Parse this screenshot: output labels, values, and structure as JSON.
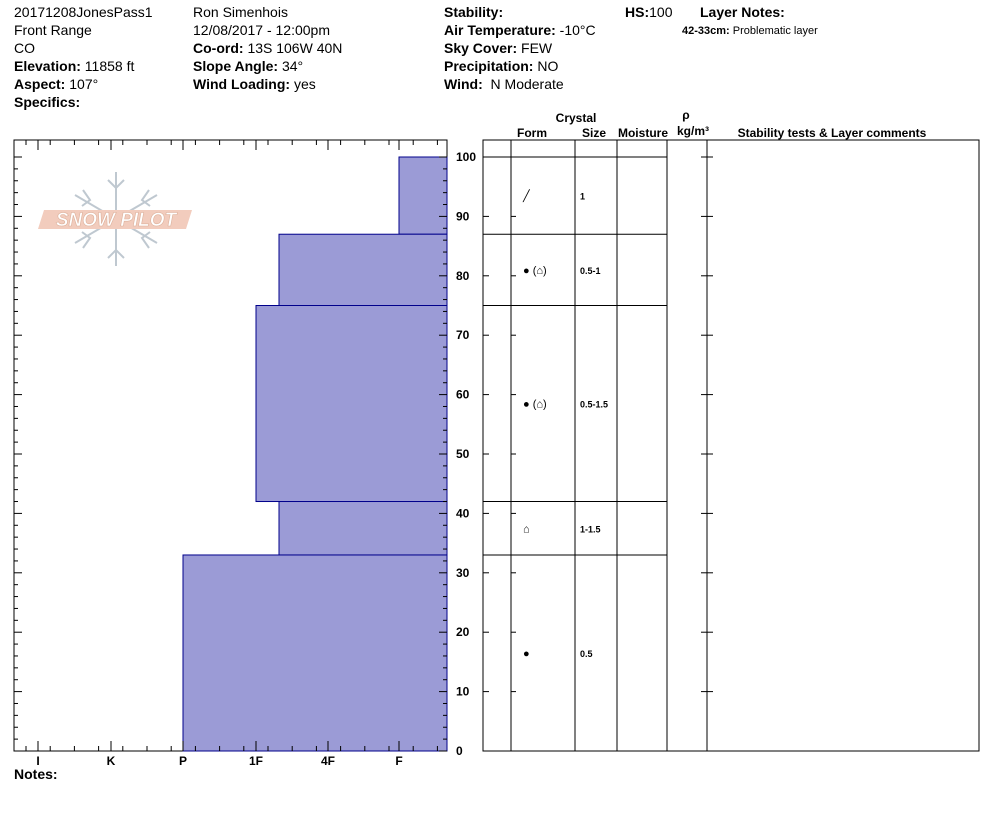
{
  "header": {
    "col1": {
      "pit_name": "20171208JonesPass1",
      "range": "Front Range",
      "state": "CO",
      "elevation_label": "Elevation:",
      "elevation_value": "11858 ft",
      "aspect_label": "Aspect:",
      "aspect_value": "107°",
      "specifics_label": "Specifics:"
    },
    "col2": {
      "observer": "Ron Simenhois",
      "datetime": "12/08/2017 - 12:00pm",
      "coord_label": "Co-ord:",
      "coord_value": "13S 106W 40N",
      "slope_label": "Slope Angle:",
      "slope_value": "34°",
      "wind_loading_label": "Wind Loading:",
      "wind_loading_value": "yes"
    },
    "col3": {
      "stability_label": "Stability:",
      "air_temp_label": "Air Temperature:",
      "air_temp_value": "-10°C",
      "sky_label": "Sky Cover:",
      "sky_value": "FEW",
      "precip_label": "Precipitation:",
      "precip_value": "NO",
      "wind_label": "Wind:",
      "wind_value": "N Moderate"
    },
    "hs_label": "HS:",
    "hs_value": "100",
    "layer_notes_label": "Layer Notes:",
    "layer_notes": [
      {
        "range": "42-33cm:",
        "text": "Problematic layer"
      }
    ],
    "notes_label": "Notes:"
  },
  "logo_text": "SNOW PILOT",
  "table_headers": {
    "crystal": "Crystal",
    "form": "Form",
    "size": "Size",
    "moisture": "Moisture",
    "rho": "ρ",
    "density_unit": "kg/m³",
    "stability": "Stability tests & Layer comments"
  },
  "colors": {
    "fill": "#9b9bd6",
    "edge": "#00008b"
  },
  "chart_data": {
    "type": "bar",
    "subtype": "snow-profile-hardness",
    "ylim": [
      0,
      100
    ],
    "y_ticks": [
      0,
      10,
      20,
      30,
      40,
      50,
      60,
      70,
      80,
      90,
      100
    ],
    "hardness_scale": [
      "I",
      "K",
      "P",
      "1F",
      "4F",
      "F"
    ],
    "layers": [
      {
        "top": 100,
        "bottom": 87,
        "hardness": "F",
        "form_symbol": "╱",
        "size": "1"
      },
      {
        "top": 87,
        "bottom": 75,
        "hardness": "4F-",
        "form_symbol": "● (⌂)",
        "size": "0.5-1"
      },
      {
        "top": 75,
        "bottom": 42,
        "hardness": "1F",
        "form_symbol": "● (⌂)",
        "size": "0.5-1.5"
      },
      {
        "top": 42,
        "bottom": 33,
        "hardness": "4F-",
        "form_symbol": "⌂",
        "size": "1-1.5"
      },
      {
        "top": 33,
        "bottom": 0,
        "hardness": "P",
        "form_symbol": "●",
        "size": "0.5"
      }
    ]
  }
}
